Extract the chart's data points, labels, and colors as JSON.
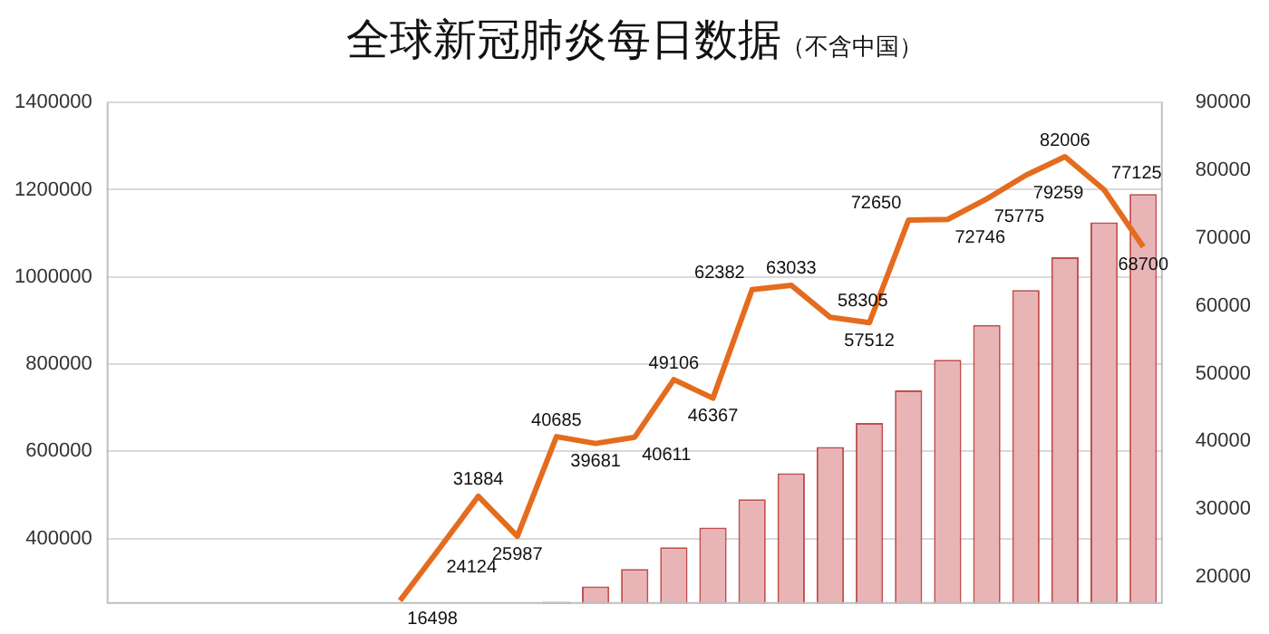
{
  "chart_data": {
    "type": "bar",
    "title": "全球新冠肺炎每日数据",
    "subtitle": "（不含中国）",
    "categories": [
      null,
      null,
      null,
      null,
      null,
      null,
      null,
      null,
      null,
      null,
      null,
      null,
      null,
      null,
      null,
      null,
      null,
      null,
      null,
      null,
      null,
      null,
      null,
      null,
      null,
      null,
      null
    ],
    "series": [
      {
        "color": "#e8b4b6",
        "values": [
          null,
          null,
          null,
          null,
          null,
          null,
          null,
          null,
          null,
          null,
          null,
          255000,
          290000,
          330000,
          380000,
          425000,
          490000,
          550000,
          610000,
          665000,
          740000,
          810000,
          890000,
          970000,
          1045000,
          1125000,
          1190000
        ]
      },
      {
        "type": "line",
        "axis": "y2",
        "color": "#e46c1e",
        "values": [
          null,
          null,
          null,
          null,
          null,
          null,
          null,
          16498,
          24124,
          31884,
          25987,
          40685,
          39681,
          40611,
          49106,
          46367,
          62382,
          63033,
          58305,
          57512,
          72650,
          72746,
          75775,
          79259,
          82006,
          77125,
          68700
        ],
        "value_labels": [
          null,
          null,
          null,
          null,
          null,
          null,
          null,
          "16498",
          "24124",
          "31884",
          "25987",
          "40685",
          "39681",
          "40611",
          "49106",
          "46367",
          "62382",
          "63033",
          "58305",
          "57512",
          "72650",
          "72746",
          "75775",
          "79259",
          "82006",
          "77125",
          "68700"
        ]
      }
    ],
    "ylim": [
      250000,
      1400000
    ],
    "yticks": [
      400000,
      600000,
      800000,
      1000000,
      1200000,
      1400000
    ],
    "y2lim": [
      16000,
      90000
    ],
    "y2ticks": [
      20000,
      30000,
      40000,
      50000,
      60000,
      70000,
      80000,
      90000
    ],
    "grid": "y",
    "legend": false,
    "marker": "none",
    "line_style": "solid"
  }
}
